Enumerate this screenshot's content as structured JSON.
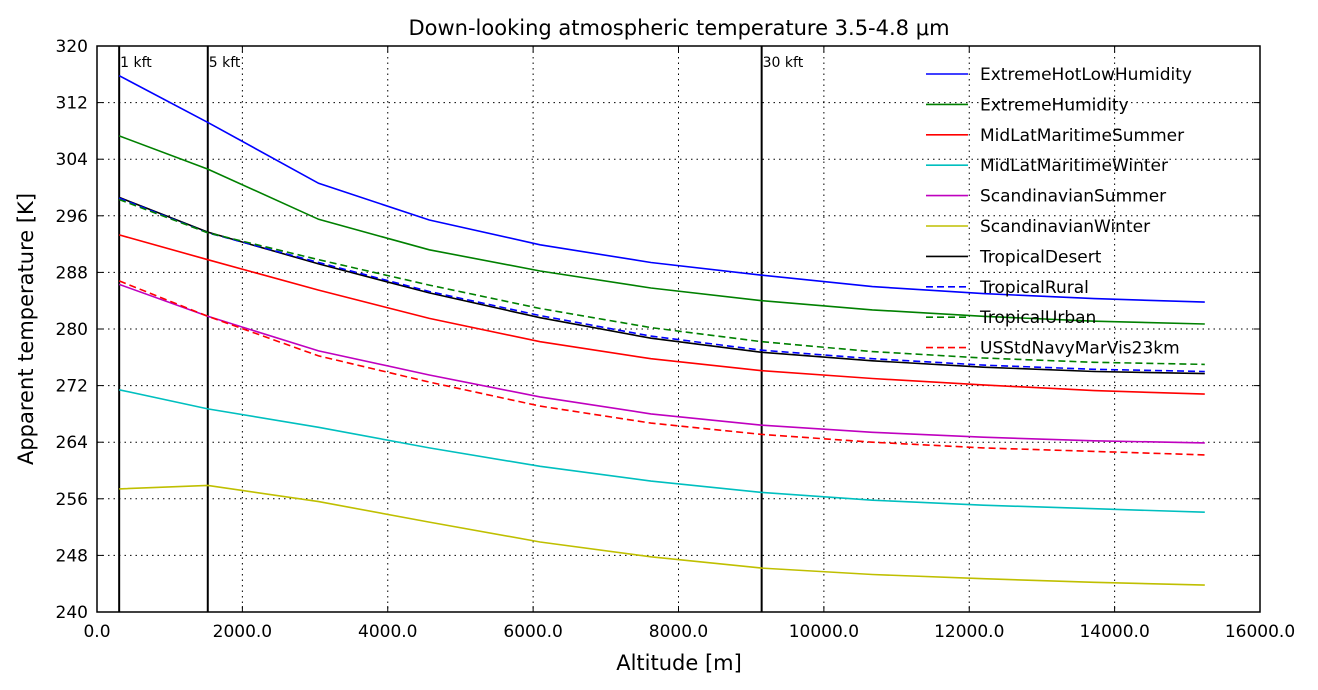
{
  "chart_data": {
    "type": "line",
    "title": "Down-looking atmospheric temperature 3.5-4.8 μm",
    "xlabel": "Altitude [m]",
    "ylabel": "Apparent temperature [K]",
    "xlim": [
      0,
      16000
    ],
    "ylim": [
      240,
      320
    ],
    "xticks": [
      0,
      2000,
      4000,
      6000,
      8000,
      10000,
      12000,
      14000,
      16000
    ],
    "xtick_labels": [
      "0.0",
      "2000.0",
      "4000.0",
      "6000.0",
      "8000.0",
      "10000.0",
      "12000.0",
      "14000.0",
      "16000.0"
    ],
    "yticks": [
      240,
      248,
      256,
      264,
      272,
      280,
      288,
      296,
      304,
      312,
      320
    ],
    "ytick_labels": [
      "240",
      "248",
      "256",
      "264",
      "272",
      "280",
      "288",
      "296",
      "304",
      "312",
      "320"
    ],
    "grid": true,
    "legend_position": "top-right",
    "x": [
      305,
      1524,
      3048,
      4572,
      6096,
      7620,
      9144,
      10668,
      12192,
      13716,
      15240
    ],
    "vertical_markers": [
      {
        "x": 305,
        "label": "1 kft"
      },
      {
        "x": 1524,
        "label": "5 kft"
      },
      {
        "x": 9144,
        "label": "30 kft"
      }
    ],
    "series": [
      {
        "name": "ExtremeHotLowHumidity",
        "color": "#0000ff",
        "dash": "solid",
        "values": [
          315.8,
          309.2,
          300.6,
          295.4,
          291.9,
          289.4,
          287.6,
          286.0,
          285.0,
          284.3,
          283.8
        ]
      },
      {
        "name": "ExtremeHumidity",
        "color": "#008000",
        "dash": "solid",
        "values": [
          307.3,
          302.6,
          295.5,
          291.2,
          288.2,
          285.8,
          284.0,
          282.7,
          281.8,
          281.1,
          280.7
        ]
      },
      {
        "name": "MidLatMaritimeSummer",
        "color": "#ff0000",
        "dash": "solid",
        "values": [
          293.3,
          289.8,
          285.5,
          281.5,
          278.2,
          275.8,
          274.1,
          273.0,
          272.1,
          271.3,
          270.8
        ]
      },
      {
        "name": "MidLatMaritimeWinter",
        "color": "#00bfbf",
        "dash": "solid",
        "values": [
          271.4,
          268.7,
          266.1,
          263.2,
          260.6,
          258.5,
          256.9,
          255.8,
          255.1,
          254.6,
          254.1
        ]
      },
      {
        "name": "ScandinavianSummer",
        "color": "#bf00bf",
        "dash": "solid",
        "values": [
          286.3,
          281.8,
          276.9,
          273.5,
          270.4,
          268.0,
          266.4,
          265.4,
          264.7,
          264.2,
          263.9
        ]
      },
      {
        "name": "ScandinavianWinter",
        "color": "#bfbf00",
        "dash": "solid",
        "values": [
          257.4,
          257.9,
          255.6,
          252.7,
          249.9,
          247.8,
          246.2,
          245.3,
          244.7,
          244.2,
          243.8
        ]
      },
      {
        "name": "TropicalDesert",
        "color": "#000000",
        "dash": "solid",
        "values": [
          298.6,
          293.7,
          289.2,
          285.1,
          281.6,
          278.7,
          276.7,
          275.5,
          274.6,
          274.0,
          273.7
        ]
      },
      {
        "name": "TropicalRural",
        "color": "#0000ff",
        "dash": "dashed",
        "values": [
          298.5,
          293.6,
          289.4,
          285.3,
          281.9,
          279.0,
          277.0,
          275.8,
          274.9,
          274.3,
          274.0
        ]
      },
      {
        "name": "TropicalUrban",
        "color": "#008000",
        "dash": "dashed",
        "values": [
          298.3,
          293.6,
          289.8,
          286.2,
          282.9,
          280.2,
          278.2,
          276.8,
          275.9,
          275.3,
          275.0
        ]
      },
      {
        "name": "USStdNavyMarVis23km",
        "color": "#ff0000",
        "dash": "dashed",
        "values": [
          286.8,
          281.8,
          276.2,
          272.5,
          269.1,
          266.7,
          265.1,
          264.0,
          263.2,
          262.7,
          262.2
        ]
      }
    ]
  }
}
